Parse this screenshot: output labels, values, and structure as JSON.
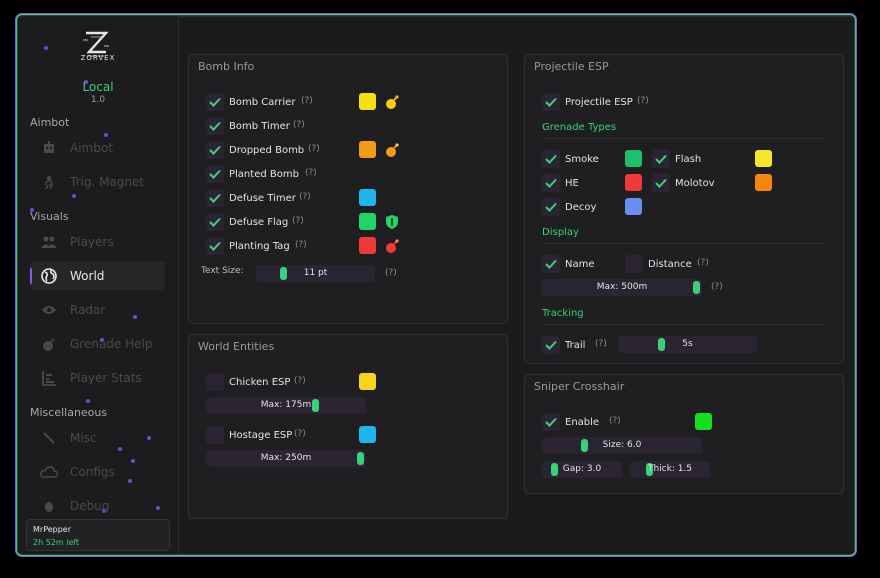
{
  "brand": {
    "name": "ZORVEX",
    "mode": "Local",
    "version": "1.0"
  },
  "sidebar": {
    "sections": {
      "aimbot": "Aimbot",
      "visuals": "Visuals",
      "misc": "Miscellaneous"
    },
    "items": [
      {
        "label": "Aimbot",
        "icon": "robot-icon"
      },
      {
        "label": "Trig. Magnet",
        "icon": "person-icon"
      },
      {
        "label": "Players",
        "icon": "users-icon"
      },
      {
        "label": "World",
        "icon": "globe-icon",
        "active": true
      },
      {
        "label": "Radar",
        "icon": "eye-icon"
      },
      {
        "label": "Grenade Help",
        "icon": "bomb-icon"
      },
      {
        "label": "Player Stats",
        "icon": "chart-icon"
      },
      {
        "label": "Misc",
        "icon": "line-icon"
      },
      {
        "label": "Configs",
        "icon": "cloud-icon"
      },
      {
        "label": "Debug",
        "icon": "bug-icon"
      }
    ],
    "user": {
      "name": "MrPepper",
      "time_left": "2h 52m left"
    }
  },
  "bomb_info": {
    "title": "Bomb Info",
    "help": "(?)",
    "rows": [
      {
        "label": "Bomb Carrier",
        "checked": true,
        "color": "#f5e10f",
        "icon": "bomb-icon"
      },
      {
        "label": "Bomb Timer",
        "checked": true
      },
      {
        "label": "Dropped Bomb",
        "checked": true,
        "color": "#f59a14",
        "icon": "bomb-icon"
      },
      {
        "label": "Planted Bomb",
        "checked": true
      },
      {
        "label": "Defuse Timer",
        "checked": true,
        "color": "#1fb6ef"
      },
      {
        "label": "Defuse Flag",
        "checked": true,
        "color": "#22d566",
        "icon": "shield-icon"
      },
      {
        "label": "Planting Tag",
        "checked": true,
        "color": "#ef3a3a",
        "icon": "bomb-icon"
      }
    ],
    "text_size_label": "Text Size:",
    "text_size_value": "11 pt",
    "text_size_fraction": 0.2
  },
  "world_entities": {
    "title": "World Entities",
    "help": "(?)",
    "chicken": {
      "label": "Chicken ESP",
      "checked": false,
      "color": "#f5d31f",
      "max": "Max: 175m",
      "fraction": 0.7
    },
    "hostage": {
      "label": "Hostage ESP",
      "checked": false,
      "color": "#1fb6ef",
      "max": "Max: 250m",
      "fraction": 1.0
    }
  },
  "projectile_esp": {
    "title": "Projectile ESP",
    "help": "(?)",
    "main": {
      "label": "Projectile ESP",
      "checked": true
    },
    "grenade_types_title": "Grenade Types",
    "grenades": [
      {
        "label": "Smoke",
        "checked": true,
        "color": "#1ec06a"
      },
      {
        "label": "Flash",
        "checked": true,
        "color": "#f5e62a"
      },
      {
        "label": "HE",
        "checked": true,
        "color": "#ef3a3a"
      },
      {
        "label": "Molotov",
        "checked": true,
        "color": "#f5870f"
      },
      {
        "label": "Decoy",
        "checked": true,
        "color": "#6a8ef5"
      }
    ],
    "display_title": "Display",
    "name": {
      "label": "Name",
      "checked": true
    },
    "distance": {
      "label": "Distance",
      "checked": false
    },
    "max_dist": "Max: 500m",
    "max_fraction": 1.0,
    "tracking_title": "Tracking",
    "trail": {
      "label": "Trail",
      "checked": true,
      "value": "5s",
      "fraction": 0.3
    }
  },
  "sniper": {
    "title": "Sniper Crosshair",
    "help": "(?)",
    "enable": {
      "label": "Enable",
      "checked": true,
      "color": "#14e11e"
    },
    "size": "Size: 6.0",
    "size_fraction": 0.25,
    "gap": "Gap: 3.0",
    "gap_fraction": 0.1,
    "thick": "Thick: 1.5",
    "thick_fraction": 0.2
  }
}
